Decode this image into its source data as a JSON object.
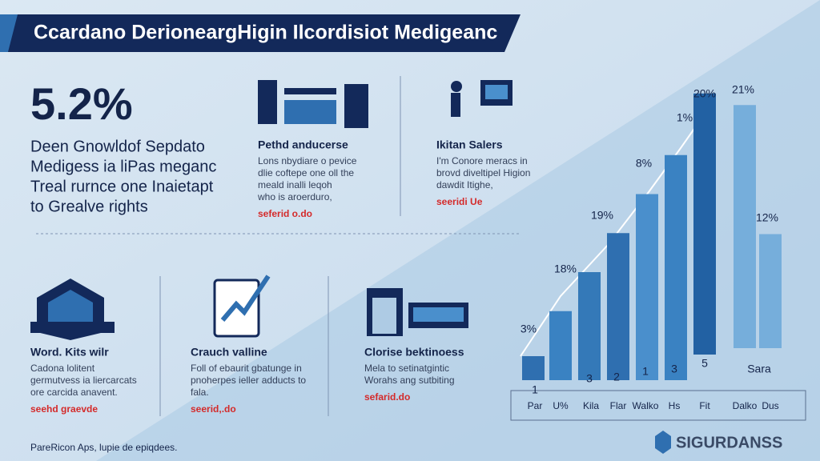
{
  "header": {
    "title": "Ccardano DerioneargHigin Ilcordisiot Medigeanc"
  },
  "stat": {
    "value": "5.2%",
    "lines": [
      "Deen Gnowldof Sepdato",
      "Medigess ia liPas meganc",
      "Treal rurnce one Inaietapt",
      "to Grealve rights"
    ]
  },
  "cards": [
    {
      "title": "Pethd anducerse",
      "lines": [
        "Lons nbydiare o pevice",
        "dlie coftepe one oll the",
        "meald inalli leqoh",
        "who is aroerduro,"
      ],
      "link": "seferid o.do"
    },
    {
      "title": "Ikitan Salers",
      "lines": [
        "I'm Conore meracs in",
        "brovd diveltipel Higion",
        "dawdit Itighe,"
      ],
      "link": "seeridi Ue"
    },
    {
      "title": "Word. Kits wilr",
      "lines": [
        "Cadona lolitent",
        "germutvess ia liercarcats",
        "ore carcida anavent."
      ],
      "link": "seehd graevde"
    },
    {
      "title": "Crauch valline",
      "lines": [
        "Foll of ebaurit gbatunge in",
        "pnoherpes ieller adducts to",
        "fala."
      ],
      "link": "seerid,.do"
    },
    {
      "title": "Clorise bektinoess",
      "lines": [
        "Mela to setinatgintic",
        "Worahs ang sutbiting"
      ],
      "link": "sefarid.do"
    }
  ],
  "chart_data": {
    "type": "bar",
    "categories": [
      "Par",
      "U%",
      "Kila",
      "Flar",
      "Walko",
      "Hs",
      "Fit",
      "Dalko",
      "Dus"
    ],
    "values": [
      8,
      23,
      36,
      49,
      62,
      75,
      87,
      81,
      38
    ],
    "colors": [
      "#2f6fb0",
      "#3a82c2",
      "#3479b8",
      "#2f6fb0",
      "#4a8fcc",
      "#3a82c2",
      "#2261a3",
      "#76aedb",
      "#76aedb"
    ],
    "ylim": [
      0,
      100
    ],
    "annotations": [
      "3%",
      "18%",
      "19%",
      "8%",
      "1%",
      "20%",
      "21%",
      "12%",
      "1",
      "3",
      "2",
      "1",
      "3",
      "5",
      "Sara"
    ]
  },
  "footer": "PareRicon Aps, lupie de epiqdees.",
  "logo": "SIGURDANSS"
}
